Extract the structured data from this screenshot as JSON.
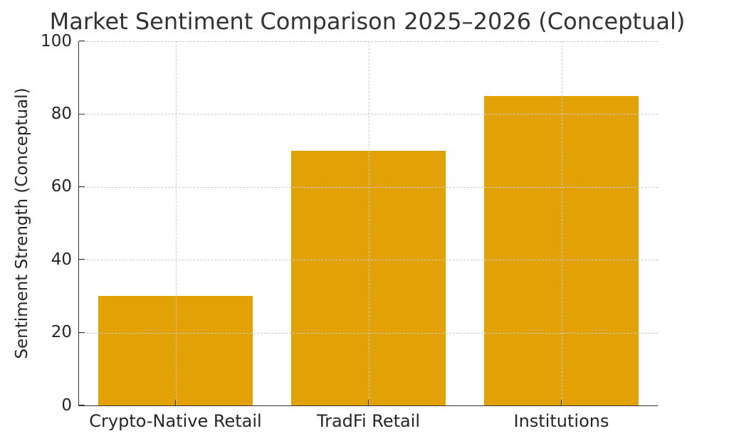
{
  "chart_data": {
    "type": "bar",
    "title": "Market Sentiment Comparison 2025–2026 (Conceptual)",
    "ylabel": "Sentiment Strength (Conceptual)",
    "xlabel": "",
    "categories": [
      "Crypto-Native Retail",
      "TradFi Retail",
      "Institutions"
    ],
    "values": [
      30,
      70,
      85
    ],
    "ylim": [
      0,
      100
    ],
    "yticks": [
      0,
      20,
      40,
      60,
      80,
      100
    ],
    "bar_width_fraction": 0.8,
    "grid": true,
    "grid_line_style": "dashed",
    "grid_on_top_of_bars": true,
    "tick_direction": "in",
    "legend": "none",
    "colors": {
      "bar": "#E2A105",
      "axis": "#333333",
      "text": "#262626",
      "grid": "#cccccc",
      "background": "#ffffff"
    }
  }
}
